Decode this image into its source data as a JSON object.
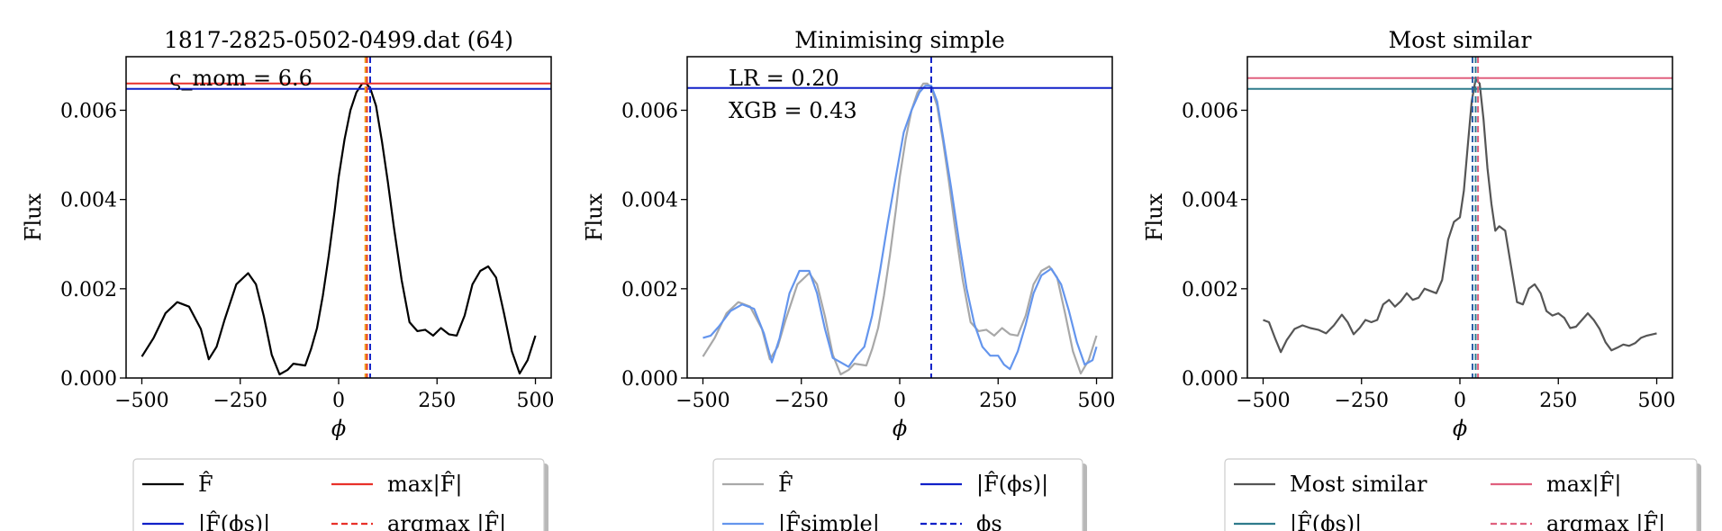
{
  "chart_data": [
    {
      "type": "line",
      "title": "1817-2825-0502-0499.dat (64)",
      "xlabel": "ϕ",
      "ylabel": "Flux",
      "xlim": [
        -540,
        540
      ],
      "ylim": [
        0,
        0.0072
      ],
      "xticks": [
        -500,
        -250,
        0,
        250,
        500
      ],
      "xtick_labels": [
        "−500",
        "−250",
        "0",
        "250",
        "500"
      ],
      "yticks": [
        0,
        0.002,
        0.004,
        0.006
      ],
      "ytick_labels": [
        "0.000",
        "0.002",
        "0.004",
        "0.006"
      ],
      "annotation": "ς_mom = 6.6",
      "series": [
        {
          "name": "F̂",
          "color": "#000000",
          "style": "solid",
          "x": [
            -500,
            -470,
            -440,
            -410,
            -380,
            -350,
            -330,
            -310,
            -290,
            -260,
            -230,
            -210,
            -190,
            -170,
            -150,
            -130,
            -115,
            -100,
            -85,
            -70,
            -55,
            -40,
            -25,
            -10,
            0,
            15,
            30,
            45,
            60,
            70,
            80,
            95,
            110,
            125,
            140,
            160,
            180,
            200,
            220,
            240,
            260,
            280,
            300,
            320,
            340,
            360,
            380,
            400,
            420,
            440,
            460,
            480,
            500
          ],
          "y": [
            0.00048,
            0.0009,
            0.00145,
            0.0017,
            0.0016,
            0.0011,
            0.00042,
            0.0007,
            0.0013,
            0.0021,
            0.00235,
            0.0021,
            0.00138,
            0.00052,
            8e-05,
            0.00018,
            0.00032,
            0.0003,
            0.00028,
            0.00065,
            0.00112,
            0.00185,
            0.00275,
            0.00375,
            0.0045,
            0.00535,
            0.006,
            0.0064,
            0.0066,
            0.0066,
            0.0065,
            0.0061,
            0.0053,
            0.0044,
            0.0034,
            0.0022,
            0.00125,
            0.00105,
            0.00108,
            0.00095,
            0.00112,
            0.00098,
            0.00095,
            0.0014,
            0.0021,
            0.0024,
            0.0025,
            0.00225,
            0.00145,
            0.0006,
            0.0001,
            0.0004,
            0.00095
          ]
        }
      ],
      "hlines": [
        {
          "name": "max|F̂|",
          "y": 0.0066,
          "color": "#e8312a",
          "style": "solid"
        },
        {
          "name": "|F̂(ϕs)|",
          "y": 0.00648,
          "color": "#1020c8",
          "style": "solid"
        }
      ],
      "vlines": [
        {
          "name": "argmax |F̂|",
          "x": 72,
          "color": "#e8312a",
          "style": "dashed"
        },
        {
          "name": "ϕs",
          "x": 80,
          "color": "#1020c8",
          "style": "dashed"
        },
        {
          "name": "",
          "x": 68,
          "color": "#f0a020",
          "style": "dashed"
        }
      ],
      "legend": {
        "placement": "below",
        "columns": 2,
        "items": [
          {
            "label": "F̂",
            "color": "#000000",
            "style": "solid"
          },
          {
            "label": "max|F̂|",
            "color": "#e8312a",
            "style": "solid"
          },
          {
            "label": "|F̂(ϕs)|",
            "color": "#1020c8",
            "style": "solid"
          },
          {
            "label": "argmax |F̂|",
            "color": "#e8312a",
            "style": "dashed"
          }
        ]
      }
    },
    {
      "type": "line",
      "title": "Minimising simple",
      "xlabel": "ϕ",
      "ylabel": "Flux",
      "xlim": [
        -540,
        540
      ],
      "ylim": [
        0,
        0.0072
      ],
      "xticks": [
        -500,
        -250,
        0,
        250,
        500
      ],
      "xtick_labels": [
        "−500",
        "−250",
        "0",
        "250",
        "500"
      ],
      "yticks": [
        0,
        0.002,
        0.004,
        0.006
      ],
      "ytick_labels": [
        "0.000",
        "0.002",
        "0.004",
        "0.006"
      ],
      "annotation_lines": [
        "LR = 0.20",
        "XGB = 0.43"
      ],
      "series": [
        {
          "name": "F̂",
          "color": "#a8a8a8",
          "style": "solid",
          "x": [
            -500,
            -470,
            -440,
            -410,
            -380,
            -350,
            -330,
            -310,
            -290,
            -260,
            -230,
            -210,
            -190,
            -170,
            -150,
            -130,
            -115,
            -100,
            -85,
            -70,
            -55,
            -40,
            -25,
            -10,
            0,
            15,
            30,
            45,
            60,
            70,
            80,
            95,
            110,
            125,
            140,
            160,
            180,
            200,
            220,
            240,
            260,
            280,
            300,
            320,
            340,
            360,
            380,
            400,
            420,
            440,
            460,
            480,
            500
          ],
          "y": [
            0.00048,
            0.0009,
            0.00145,
            0.0017,
            0.0016,
            0.0011,
            0.00042,
            0.0007,
            0.0013,
            0.0021,
            0.00235,
            0.0021,
            0.00138,
            0.00052,
            8e-05,
            0.00018,
            0.00032,
            0.0003,
            0.00028,
            0.00065,
            0.00112,
            0.00185,
            0.00275,
            0.00375,
            0.0045,
            0.00535,
            0.006,
            0.0064,
            0.0066,
            0.0066,
            0.0065,
            0.0061,
            0.0053,
            0.0044,
            0.0034,
            0.0022,
            0.00125,
            0.00105,
            0.00108,
            0.00095,
            0.00112,
            0.00098,
            0.00095,
            0.0014,
            0.0021,
            0.0024,
            0.0025,
            0.00225,
            0.00145,
            0.0006,
            0.0001,
            0.0004,
            0.00095
          ]
        },
        {
          "name": "|F̂simple|",
          "color": "#6495ed",
          "style": "solid",
          "x": [
            -500,
            -480,
            -460,
            -430,
            -400,
            -370,
            -345,
            -325,
            -305,
            -280,
            -255,
            -230,
            -210,
            -190,
            -170,
            -150,
            -130,
            -110,
            -90,
            -70,
            -50,
            -30,
            -10,
            10,
            30,
            50,
            65,
            80,
            95,
            110,
            130,
            150,
            170,
            190,
            210,
            230,
            250,
            265,
            280,
            300,
            320,
            340,
            360,
            385,
            410,
            430,
            450,
            470,
            490,
            500
          ],
          "y": [
            0.0009,
            0.00095,
            0.00115,
            0.0015,
            0.00165,
            0.00155,
            0.001,
            0.00035,
            0.0009,
            0.0019,
            0.0024,
            0.0024,
            0.0019,
            0.0011,
            0.00045,
            0.00035,
            0.00025,
            0.0005,
            0.0007,
            0.0014,
            0.0024,
            0.0035,
            0.0045,
            0.0055,
            0.006,
            0.0064,
            0.00655,
            0.00655,
            0.0062,
            0.0054,
            0.0043,
            0.0031,
            0.002,
            0.0012,
            0.0007,
            0.0005,
            0.0005,
            0.0003,
            0.0002,
            0.0006,
            0.0012,
            0.0019,
            0.0023,
            0.00245,
            0.0021,
            0.0015,
            0.0008,
            0.0003,
            0.0004,
            0.0007
          ]
        }
      ],
      "hlines": [
        {
          "name": "|F̂(ϕs)|",
          "y": 0.0065,
          "color": "#1020c8",
          "style": "solid"
        }
      ],
      "vlines": [
        {
          "name": "ϕs",
          "x": 80,
          "color": "#1020c8",
          "style": "dashed"
        }
      ],
      "legend": {
        "placement": "below",
        "columns": 2,
        "items": [
          {
            "label": "F̂",
            "color": "#a8a8a8",
            "style": "solid"
          },
          {
            "label": "|F̂(ϕs)|",
            "color": "#1020c8",
            "style": "solid"
          },
          {
            "label": "|F̂simple|",
            "color": "#6495ed",
            "style": "solid"
          },
          {
            "label": "ϕs",
            "color": "#1020c8",
            "style": "dashed"
          }
        ]
      }
    },
    {
      "type": "line",
      "title": "Most similar",
      "xlabel": "ϕ",
      "ylabel": "Flux",
      "xlim": [
        -540,
        540
      ],
      "ylim": [
        0,
        0.0072
      ],
      "xticks": [
        -500,
        -250,
        0,
        250,
        500
      ],
      "xtick_labels": [
        "−500",
        "−250",
        "0",
        "250",
        "500"
      ],
      "yticks": [
        0,
        0.002,
        0.004,
        0.006
      ],
      "ytick_labels": [
        "0.000",
        "0.002",
        "0.004",
        "0.006"
      ],
      "series": [
        {
          "name": "Most similar",
          "color": "#555555",
          "style": "solid",
          "x": [
            -500,
            -485,
            -470,
            -455,
            -440,
            -420,
            -400,
            -380,
            -360,
            -340,
            -320,
            -300,
            -285,
            -270,
            -255,
            -240,
            -225,
            -210,
            -195,
            -180,
            -165,
            -150,
            -135,
            -120,
            -105,
            -90,
            -75,
            -60,
            -45,
            -30,
            -15,
            0,
            10,
            20,
            30,
            40,
            50,
            60,
            70,
            80,
            90,
            100,
            115,
            130,
            145,
            160,
            175,
            190,
            205,
            220,
            235,
            250,
            265,
            280,
            295,
            310,
            325,
            340,
            355,
            370,
            385,
            400,
            415,
            430,
            445,
            460,
            475,
            490,
            500
          ],
          "y": [
            0.0013,
            0.00125,
            0.0009,
            0.00058,
            0.00085,
            0.0011,
            0.00118,
            0.00112,
            0.00108,
            0.001,
            0.00118,
            0.00142,
            0.00125,
            0.00098,
            0.00112,
            0.0013,
            0.00125,
            0.0013,
            0.00165,
            0.00175,
            0.0016,
            0.00172,
            0.0019,
            0.00175,
            0.0018,
            0.002,
            0.00195,
            0.0019,
            0.0022,
            0.0031,
            0.0035,
            0.0036,
            0.0042,
            0.0052,
            0.0062,
            0.0067,
            0.0066,
            0.0058,
            0.0047,
            0.0039,
            0.0033,
            0.0034,
            0.0033,
            0.0025,
            0.0017,
            0.00165,
            0.002,
            0.0021,
            0.0019,
            0.0015,
            0.0014,
            0.00145,
            0.00135,
            0.00112,
            0.00115,
            0.0013,
            0.00145,
            0.0013,
            0.0011,
            0.0008,
            0.00062,
            0.00068,
            0.00075,
            0.00072,
            0.00078,
            0.0009,
            0.00095,
            0.00098,
            0.001
          ]
        }
      ],
      "hlines": [
        {
          "name": "max|F̂|",
          "y": 0.00672,
          "color": "#e0607e",
          "style": "solid"
        },
        {
          "name": "|F̂(ϕs)|",
          "y": 0.00648,
          "color": "#2e7b8c",
          "style": "solid"
        }
      ],
      "vlines": [
        {
          "name": "argmax |F̂|",
          "x": 46,
          "color": "#e0607e",
          "style": "dashed"
        },
        {
          "name": "",
          "x": 32,
          "color": "#2e5ea8",
          "style": "dashed"
        },
        {
          "name": "",
          "x": 40,
          "color": "#2e7b8c",
          "style": "dashed"
        }
      ],
      "legend": {
        "placement": "below",
        "columns": 2,
        "items": [
          {
            "label": "Most similar",
            "color": "#555555",
            "style": "solid"
          },
          {
            "label": "max|F̂|",
            "color": "#e0607e",
            "style": "solid"
          },
          {
            "label": "|F̂(ϕs)|",
            "color": "#2e7b8c",
            "style": "solid"
          },
          {
            "label": "argmax |F̂|",
            "color": "#e0607e",
            "style": "dashed"
          }
        ]
      }
    }
  ]
}
